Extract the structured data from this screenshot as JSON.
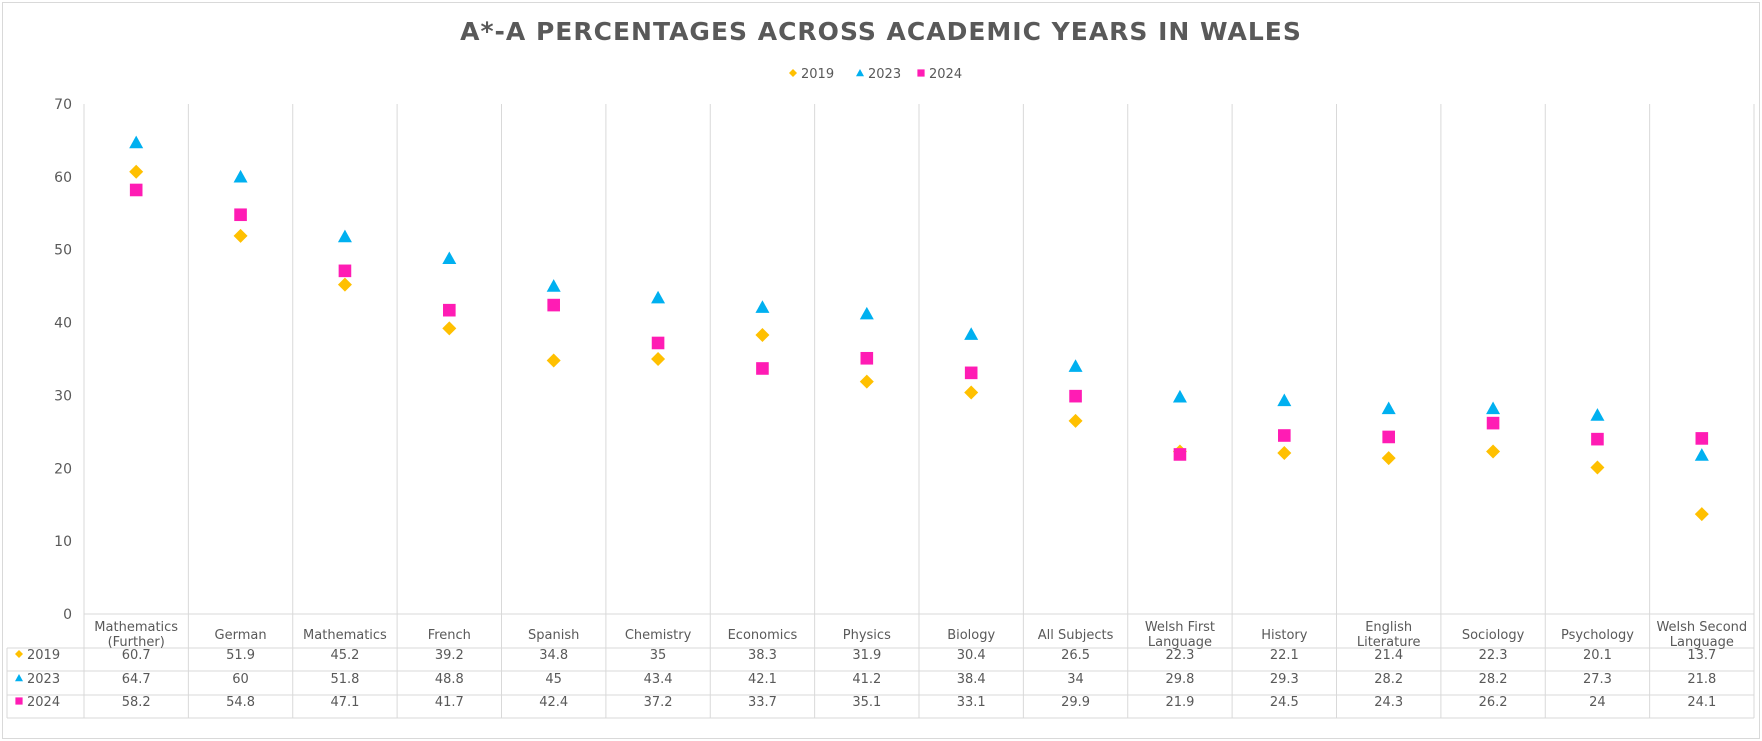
{
  "chart_data": {
    "type": "scatter",
    "title": "A*-A PERCENTAGES ACROSS ACADEMIC YEARS IN WALES",
    "ylim": [
      0,
      70
    ],
    "yticks": [
      "0",
      "10",
      "20",
      "30",
      "40",
      "50",
      "60",
      "70"
    ],
    "grid": "vertical category separators",
    "legend_position": "top-center",
    "data_table": true,
    "categories": [
      [
        "Mathematics",
        "(Further)"
      ],
      [
        "German"
      ],
      [
        "Mathematics"
      ],
      [
        "French"
      ],
      [
        "Spanish"
      ],
      [
        "Chemistry"
      ],
      [
        "Economics"
      ],
      [
        "Physics"
      ],
      [
        "Biology"
      ],
      [
        "All Subjects"
      ],
      [
        "Welsh First",
        "Language"
      ],
      [
        "History"
      ],
      [
        "English",
        "Literature"
      ],
      [
        "Sociology"
      ],
      [
        "Psychology"
      ],
      [
        "Welsh Second",
        "Language"
      ]
    ],
    "series": [
      {
        "name": "2019",
        "marker": "diamond",
        "color": "#FFC000",
        "values": [
          60.7,
          51.9,
          45.2,
          39.2,
          34.8,
          35,
          38.3,
          31.9,
          30.4,
          26.5,
          22.3,
          22.1,
          21.4,
          22.3,
          20.1,
          13.7
        ],
        "labels": [
          "60.7",
          "51.9",
          "45.2",
          "39.2",
          "34.8",
          "35",
          "38.3",
          "31.9",
          "30.4",
          "26.5",
          "22.3",
          "22.1",
          "21.4",
          "22.3",
          "20.1",
          "13.7"
        ]
      },
      {
        "name": "2023",
        "marker": "triangle",
        "color": "#00B0F0",
        "values": [
          64.7,
          60,
          51.8,
          48.8,
          45,
          43.4,
          42.1,
          41.2,
          38.4,
          34,
          29.8,
          29.3,
          28.2,
          28.2,
          27.3,
          21.8
        ],
        "labels": [
          "64.7",
          "60",
          "51.8",
          "48.8",
          "45",
          "43.4",
          "42.1",
          "41.2",
          "38.4",
          "34",
          "29.8",
          "29.3",
          "28.2",
          "28.2",
          "27.3",
          "21.8"
        ]
      },
      {
        "name": "2024",
        "marker": "square",
        "color": "#FF1CB4",
        "values": [
          58.2,
          54.8,
          47.1,
          41.7,
          42.4,
          37.2,
          33.7,
          35.1,
          33.1,
          29.9,
          21.9,
          24.5,
          24.3,
          26.2,
          24,
          24.1
        ],
        "labels": [
          "58.2",
          "54.8",
          "47.1",
          "41.7",
          "42.4",
          "37.2",
          "33.7",
          "35.1",
          "33.1",
          "29.9",
          "21.9",
          "24.5",
          "24.3",
          "26.2",
          "24",
          "24.1"
        ]
      }
    ]
  }
}
